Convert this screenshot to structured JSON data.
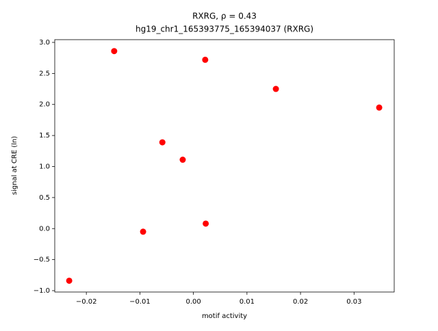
{
  "chart_data": {
    "type": "scatter",
    "title": [
      "RXRG, ρ = 0.43",
      "hg19_chr1_165393775_165394037 (RXRG)"
    ],
    "xlabel": "motif activity",
    "ylabel": "signal at CRE (ln)",
    "color": "#ff0000",
    "x": [
      -0.0232,
      -0.0148,
      -0.0094,
      -0.0058,
      -0.002,
      0.0022,
      0.0023,
      0.0154,
      0.0347
    ],
    "values": [
      -0.84,
      2.86,
      -0.05,
      1.39,
      1.11,
      2.72,
      0.08,
      2.25,
      1.95
    ],
    "xlim": [
      -0.0259,
      0.0375
    ],
    "ylim": [
      -1.022,
      3.044
    ],
    "xticks": [
      {
        "value": -0.02,
        "label": "−0.02"
      },
      {
        "value": -0.01,
        "label": "−0.01"
      },
      {
        "value": 0,
        "label": "0.00"
      },
      {
        "value": 0.01,
        "label": "0.01"
      },
      {
        "value": 0.02,
        "label": "0.02"
      },
      {
        "value": 0.03,
        "label": "0.03"
      }
    ],
    "yticks": [
      {
        "value": -1,
        "label": "−1.0"
      },
      {
        "value": -0.5,
        "label": "−0.5"
      },
      {
        "value": 0,
        "label": "0.0"
      },
      {
        "value": 0.5,
        "label": "0.5"
      },
      {
        "value": 1,
        "label": "1.0"
      },
      {
        "value": 1.5,
        "label": "1.5"
      },
      {
        "value": 2,
        "label": "2.0"
      },
      {
        "value": 2.5,
        "label": "2.5"
      },
      {
        "value": 3,
        "label": "3.0"
      }
    ],
    "grid": false
  }
}
